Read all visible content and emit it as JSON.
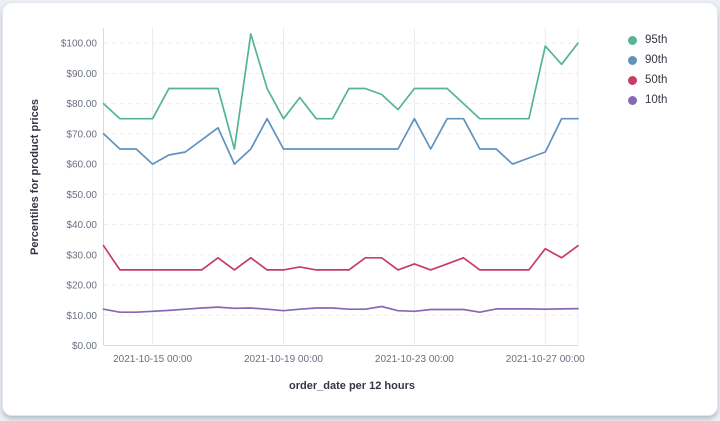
{
  "panel": {
    "background": "#FFFFFF",
    "page_background": "#ECEFF4",
    "border_color": "#E3E8EE"
  },
  "chart_data": {
    "type": "line",
    "title": "",
    "xlabel": "order_date per 12 hours",
    "ylabel": "Percentiles for product prices",
    "x_start": "2021-10-13 12:00",
    "x_end": "2021-10-28 00:00",
    "x_interval": "12 hours",
    "num_points": 30,
    "x_tick_indices": [
      3,
      11,
      19,
      27
    ],
    "x_tick_labels": [
      "2021-10-15 00:00",
      "2021-10-19 00:00",
      "2021-10-23 00:00",
      "2021-10-27 00:00"
    ],
    "y_tick_values": [
      0,
      10,
      20,
      30,
      40,
      50,
      60,
      70,
      80,
      90,
      100
    ],
    "y_tick_labels": [
      "$0.00",
      "$10.00",
      "$20.00",
      "$30.00",
      "$40.00",
      "$50.00",
      "$60.00",
      "$70.00",
      "$80.00",
      "$90.00",
      "$100.00"
    ],
    "ylim": [
      0,
      105
    ],
    "grid": true,
    "legend_position": "right",
    "series": [
      {
        "name": "95th",
        "color": "#54B399",
        "values": [
          80,
          75,
          75,
          75,
          85,
          85,
          85,
          85,
          65,
          103,
          85,
          75,
          82,
          75,
          75,
          85,
          85,
          83,
          78,
          85,
          85,
          85,
          80,
          75,
          75,
          75,
          75,
          99,
          93,
          100
        ]
      },
      {
        "name": "90th",
        "color": "#6092C0",
        "values": [
          70,
          65,
          65,
          60,
          63,
          64,
          68,
          72,
          60,
          65,
          75,
          65,
          65,
          65,
          65,
          65,
          65,
          65,
          65,
          75,
          65,
          75,
          75,
          65,
          65,
          60,
          62,
          64,
          75,
          75
        ]
      },
      {
        "name": "50th",
        "color": "#C63D66",
        "values": [
          33,
          25,
          25,
          25,
          25,
          25,
          25,
          29,
          25,
          29,
          25,
          25,
          26,
          25,
          25,
          25,
          29,
          29,
          25,
          27,
          25,
          27,
          29,
          25,
          25,
          25,
          25,
          32,
          29,
          33
        ]
      },
      {
        "name": "10th",
        "color": "#8768B8",
        "values": [
          12,
          11,
          11,
          11.3,
          11.6,
          12,
          12.4,
          12.7,
          12.3,
          12.4,
          12,
          11.5,
          12,
          12.4,
          12.4,
          12,
          12,
          12.9,
          11.5,
          11.3,
          11.9,
          11.9,
          11.9,
          11,
          12.1,
          12.1,
          12.1,
          12,
          12.1,
          12.2
        ]
      }
    ]
  }
}
